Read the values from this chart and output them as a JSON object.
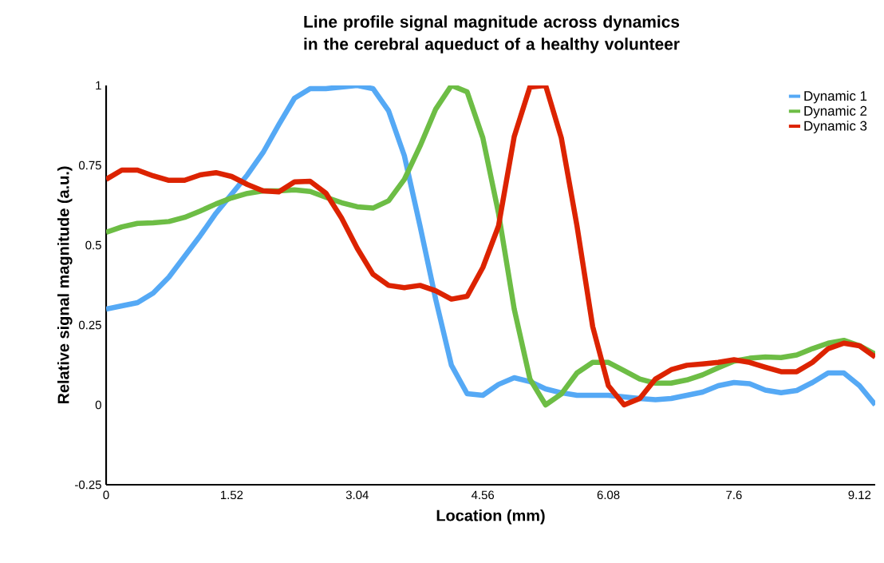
{
  "chart_data": {
    "type": "line",
    "title": "Line profile signal magnitude across dynamics in the cerebral aqueduct of a healthy volunteer",
    "xlabel": "Location (mm)",
    "ylabel": "Relative signal magnitude (a.u.)",
    "x": [
      0,
      0.19,
      0.38,
      0.57,
      0.76,
      0.95,
      1.14,
      1.33,
      1.52,
      1.71,
      1.9,
      2.09,
      2.28,
      2.47,
      2.66,
      2.85,
      3.04,
      3.23,
      3.42,
      3.61,
      3.8,
      3.99,
      4.18,
      4.37,
      4.56,
      4.75,
      4.94,
      5.13,
      5.32,
      5.51,
      5.7,
      5.89,
      6.08,
      6.27,
      6.46,
      6.65,
      6.84,
      7.03,
      7.22,
      7.41,
      7.6,
      7.79,
      7.98,
      8.17,
      8.36,
      8.55,
      8.74,
      8.93,
      9.12,
      9.31
    ],
    "xlim": [
      0,
      9.31
    ],
    "xticks": [
      0,
      1.52,
      3.04,
      4.56,
      6.08,
      7.6,
      9.12
    ],
    "ylim": [
      -0.25,
      1
    ],
    "yticks": [
      -0.25,
      0,
      0.25,
      0.5,
      0.75,
      1
    ],
    "grid": false,
    "legend": "top right",
    "marker": "none",
    "line_style": "solid",
    "series": [
      {
        "name": "Dynamic 1",
        "color": "#55a9f5",
        "values": [
          0.3,
          0.31,
          0.32,
          0.35,
          0.4,
          0.465,
          0.53,
          0.6,
          0.66,
          0.72,
          0.79,
          0.877,
          0.96,
          0.99,
          0.99,
          0.995,
          1.0,
          0.99,
          0.92,
          0.78,
          0.56,
          0.33,
          0.124,
          0.035,
          0.03,
          0.064,
          0.085,
          0.073,
          0.05,
          0.038,
          0.03,
          0.03,
          0.03,
          0.025,
          0.02,
          0.016,
          0.02,
          0.03,
          0.04,
          0.06,
          0.07,
          0.066,
          0.046,
          0.038,
          0.045,
          0.07,
          0.1,
          0.1,
          0.06,
          0.0
        ]
      },
      {
        "name": "Dynamic 2",
        "color": "#6dbd45",
        "values": [
          0.54,
          0.557,
          0.568,
          0.57,
          0.574,
          0.587,
          0.607,
          0.629,
          0.648,
          0.662,
          0.67,
          0.67,
          0.673,
          0.668,
          0.65,
          0.633,
          0.62,
          0.616,
          0.639,
          0.706,
          0.81,
          0.926,
          1.0,
          0.98,
          0.836,
          0.6,
          0.3,
          0.081,
          0.0,
          0.034,
          0.1,
          0.133,
          0.133,
          0.107,
          0.081,
          0.068,
          0.068,
          0.078,
          0.094,
          0.116,
          0.137,
          0.146,
          0.15,
          0.148,
          0.156,
          0.176,
          0.193,
          0.202,
          0.185,
          0.159
        ]
      },
      {
        "name": "Dynamic 3",
        "color": "#dc2300",
        "values": [
          0.706,
          0.735,
          0.735,
          0.717,
          0.703,
          0.703,
          0.72,
          0.727,
          0.715,
          0.69,
          0.67,
          0.667,
          0.698,
          0.7,
          0.663,
          0.585,
          0.49,
          0.409,
          0.374,
          0.367,
          0.374,
          0.357,
          0.331,
          0.34,
          0.43,
          0.56,
          0.84,
          0.995,
          1.0,
          0.836,
          0.56,
          0.245,
          0.06,
          0.0,
          0.02,
          0.081,
          0.11,
          0.124,
          0.128,
          0.133,
          0.141,
          0.133,
          0.118,
          0.104,
          0.104,
          0.133,
          0.176,
          0.193,
          0.185,
          0.15
        ]
      }
    ]
  }
}
